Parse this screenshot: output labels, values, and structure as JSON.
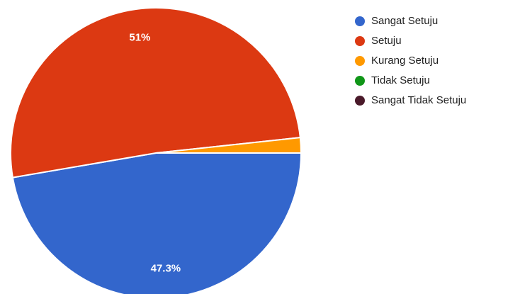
{
  "chart_data": {
    "type": "pie",
    "categories": [
      "Sangat Setuju",
      "Setuju",
      "Kurang Setuju",
      "Tidak Setuju",
      "Sangat Tidak Setuju"
    ],
    "values": [
      47.3,
      51,
      1.7,
      0,
      0
    ],
    "value_labels": [
      "47.3%",
      "51%",
      null,
      null,
      null
    ],
    "colors": [
      "#3366cc",
      "#dc3912",
      "#ff9900",
      "#109618",
      "#4a1a2a"
    ],
    "legend": "right"
  }
}
